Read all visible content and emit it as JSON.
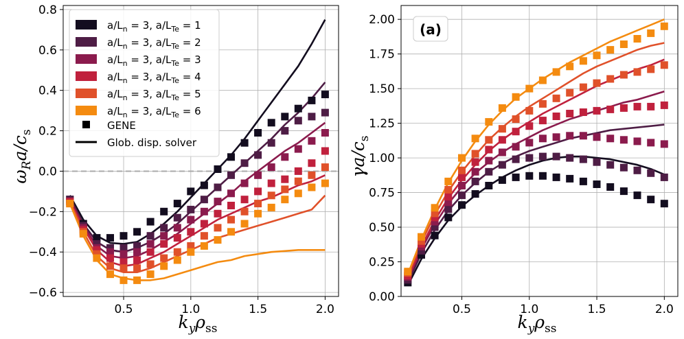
{
  "chart_data": [
    {
      "type": "scatter",
      "panel": "left",
      "xlabel": "k_y ρ_ss",
      "ylabel": "ω_R a / c_s",
      "xlim": [
        0.05,
        2.1
      ],
      "ylim": [
        -0.62,
        0.82
      ],
      "xticks": [
        0.5,
        1.0,
        1.5,
        2.0
      ],
      "xtick_labels": [
        "0.5",
        "1.0",
        "1.5",
        "2.0"
      ],
      "yticks": [
        -0.6,
        -0.4,
        -0.2,
        0.0,
        0.2,
        0.4,
        0.6,
        0.8
      ],
      "ytick_labels": [
        "−0.6",
        "−0.4",
        "−0.2",
        "0.0",
        "0.2",
        "0.4",
        "0.6",
        "0.8"
      ],
      "grid": true,
      "hline_zero": true,
      "legend_position": "top-left",
      "legend": {
        "entries": [
          {
            "text_main": "a/L",
            "sub1": "n",
            "mid": " = 3, a/L",
            "sub2": "Te",
            "tail": " = 1"
          },
          {
            "text_main": "a/L",
            "sub1": "n",
            "mid": " = 3, a/L",
            "sub2": "Te",
            "tail": " = 2"
          },
          {
            "text_main": "a/L",
            "sub1": "n",
            "mid": " = 3, a/L",
            "sub2": "Te",
            "tail": " = 3"
          },
          {
            "text_main": "a/L",
            "sub1": "n",
            "mid": " = 3, a/L",
            "sub2": "Te",
            "tail": " = 4"
          },
          {
            "text_main": "a/L",
            "sub1": "n",
            "mid": " = 3, a/L",
            "sub2": "Te",
            "tail": " = 5"
          },
          {
            "text_main": "a/L",
            "sub1": "n",
            "mid": " = 3, a/L",
            "sub2": "Te",
            "tail": " = 6"
          }
        ],
        "gene_label": "GENE",
        "solver_label": "Glob. disp. solver"
      },
      "x": [
        0.1,
        0.2,
        0.3,
        0.4,
        0.5,
        0.6,
        0.7,
        0.8,
        0.9,
        1.0,
        1.1,
        1.2,
        1.3,
        1.4,
        1.5,
        1.6,
        1.7,
        1.8,
        1.9,
        2.0
      ],
      "series": [
        {
          "name": "a/Ln = 3, a/LTe = 1",
          "color": "#130d1f",
          "gene": [
            -0.14,
            -0.26,
            -0.33,
            -0.33,
            -0.32,
            -0.3,
            -0.25,
            -0.2,
            -0.16,
            -0.1,
            -0.07,
            0.01,
            0.07,
            0.14,
            0.19,
            0.24,
            0.27,
            0.31,
            0.35,
            0.38
          ],
          "solver": [
            -0.12,
            -0.24,
            -0.32,
            -0.355,
            -0.36,
            -0.35,
            -0.31,
            -0.26,
            -0.2,
            -0.13,
            -0.06,
            0.01,
            0.08,
            0.16,
            0.25,
            0.34,
            0.43,
            0.52,
            0.63,
            0.75
          ]
        },
        {
          "name": "a/Ln = 3, a/LTe = 2",
          "color": "#4e1d45",
          "gene": [
            -0.14,
            -0.27,
            -0.36,
            -0.38,
            -0.38,
            -0.37,
            -0.32,
            -0.28,
            -0.23,
            -0.19,
            -0.14,
            -0.08,
            -0.02,
            0.04,
            0.08,
            0.14,
            0.2,
            0.25,
            0.27,
            0.29
          ],
          "solver": [
            -0.13,
            -0.26,
            -0.35,
            -0.39,
            -0.4,
            -0.38,
            -0.35,
            -0.31,
            -0.26,
            -0.2,
            -0.14,
            -0.08,
            -0.02,
            0.04,
            0.1,
            0.16,
            0.23,
            0.29,
            0.36,
            0.44
          ]
        },
        {
          "name": "a/Ln = 3, a/LTe = 3",
          "color": "#8b1b4d",
          "gene": [
            -0.15,
            -0.28,
            -0.38,
            -0.4,
            -0.41,
            -0.4,
            -0.36,
            -0.32,
            -0.28,
            -0.24,
            -0.2,
            -0.15,
            -0.11,
            -0.06,
            -0.02,
            0.02,
            0.07,
            0.11,
            0.15,
            0.19
          ],
          "solver": [
            -0.14,
            -0.27,
            -0.37,
            -0.42,
            -0.43,
            -0.42,
            -0.39,
            -0.35,
            -0.31,
            -0.26,
            -0.21,
            -0.16,
            -0.11,
            -0.05,
            0.0,
            0.05,
            0.1,
            0.14,
            0.19,
            0.24
          ]
        },
        {
          "name": "a/Ln = 3, a/LTe = 4",
          "color": "#c0213d",
          "gene": [
            -0.15,
            -0.29,
            -0.39,
            -0.43,
            -0.45,
            -0.44,
            -0.4,
            -0.36,
            -0.33,
            -0.3,
            -0.26,
            -0.21,
            -0.17,
            -0.14,
            -0.1,
            -0.06,
            -0.04,
            0.0,
            0.04,
            0.1
          ],
          "solver": [
            -0.15,
            -0.28,
            -0.39,
            -0.45,
            -0.47,
            -0.46,
            -0.43,
            -0.4,
            -0.36,
            -0.32,
            -0.28,
            -0.24,
            -0.21,
            -0.18,
            -0.15,
            -0.13,
            -0.1,
            -0.07,
            -0.05,
            -0.02
          ]
        },
        {
          "name": "a/Ln = 3, a/LTe = 5",
          "color": "#e0512a",
          "gene": [
            -0.16,
            -0.3,
            -0.41,
            -0.47,
            -0.48,
            -0.48,
            -0.46,
            -0.43,
            -0.4,
            -0.37,
            -0.32,
            -0.28,
            -0.24,
            -0.2,
            -0.16,
            -0.12,
            -0.09,
            -0.05,
            -0.02,
            0.02
          ],
          "solver": [
            -0.15,
            -0.3,
            -0.42,
            -0.48,
            -0.5,
            -0.5,
            -0.48,
            -0.45,
            -0.42,
            -0.39,
            -0.36,
            -0.33,
            -0.31,
            -0.29,
            -0.27,
            -0.25,
            -0.23,
            -0.21,
            -0.19,
            -0.12
          ]
        },
        {
          "name": "a/Ln = 3, a/LTe = 6",
          "color": "#f48b10",
          "gene": [
            -0.16,
            -0.31,
            -0.43,
            -0.51,
            -0.54,
            -0.54,
            -0.51,
            -0.47,
            -0.44,
            -0.4,
            -0.37,
            -0.34,
            -0.3,
            -0.26,
            -0.21,
            -0.18,
            -0.14,
            -0.11,
            -0.08,
            -0.06
          ],
          "solver": [
            -0.16,
            -0.32,
            -0.44,
            -0.51,
            -0.53,
            -0.54,
            -0.54,
            -0.53,
            -0.51,
            -0.49,
            -0.47,
            -0.45,
            -0.44,
            -0.42,
            -0.41,
            -0.4,
            -0.395,
            -0.39,
            -0.39,
            -0.39
          ]
        }
      ]
    },
    {
      "type": "scatter",
      "panel": "right",
      "panel_label": "(a)",
      "xlabel": "k_y ρ_ss",
      "ylabel": "γ a / c_s",
      "xlim": [
        0.05,
        2.1
      ],
      "ylim": [
        0.0,
        2.1
      ],
      "xticks": [
        0.5,
        1.0,
        1.5,
        2.0
      ],
      "xtick_labels": [
        "0.5",
        "1.0",
        "1.5",
        "2.0"
      ],
      "yticks": [
        0.0,
        0.25,
        0.5,
        0.75,
        1.0,
        1.25,
        1.5,
        1.75,
        2.0
      ],
      "ytick_labels": [
        "0.00",
        "0.25",
        "0.50",
        "0.75",
        "1.00",
        "1.25",
        "1.50",
        "1.75",
        "2.00"
      ],
      "grid": true,
      "x": [
        0.1,
        0.2,
        0.3,
        0.4,
        0.5,
        0.6,
        0.7,
        0.8,
        0.9,
        1.0,
        1.1,
        1.2,
        1.3,
        1.4,
        1.5,
        1.6,
        1.7,
        1.8,
        1.9,
        2.0
      ],
      "series": [
        {
          "name": "a/Ln = 3, a/LTe = 1",
          "color": "#130d1f",
          "gene": [
            0.1,
            0.3,
            0.44,
            0.57,
            0.66,
            0.74,
            0.8,
            0.84,
            0.86,
            0.87,
            0.87,
            0.86,
            0.85,
            0.83,
            0.81,
            0.79,
            0.76,
            0.73,
            0.7,
            0.67
          ],
          "solver": [
            0.08,
            0.27,
            0.42,
            0.55,
            0.65,
            0.73,
            0.8,
            0.86,
            0.91,
            0.95,
            0.98,
            1.0,
            1.01,
            1.01,
            1.0,
            0.99,
            0.97,
            0.95,
            0.92,
            0.88
          ]
        },
        {
          "name": "a/Ln = 3, a/LTe = 2",
          "color": "#4e1d45",
          "gene": [
            0.12,
            0.33,
            0.5,
            0.63,
            0.73,
            0.83,
            0.9,
            0.95,
            0.99,
            1.0,
            1.01,
            1.01,
            1.0,
            0.99,
            0.97,
            0.95,
            0.93,
            0.91,
            0.89,
            0.86
          ],
          "solver": [
            0.1,
            0.31,
            0.48,
            0.62,
            0.73,
            0.82,
            0.9,
            0.96,
            1.01,
            1.05,
            1.08,
            1.11,
            1.14,
            1.16,
            1.18,
            1.2,
            1.21,
            1.22,
            1.23,
            1.24
          ]
        },
        {
          "name": "a/Ln = 3, a/LTe = 3",
          "color": "#8b1b4d",
          "gene": [
            0.14,
            0.36,
            0.54,
            0.68,
            0.8,
            0.9,
            0.98,
            1.04,
            1.08,
            1.11,
            1.14,
            1.15,
            1.16,
            1.16,
            1.15,
            1.14,
            1.13,
            1.12,
            1.11,
            1.1
          ],
          "solver": [
            0.12,
            0.34,
            0.52,
            0.67,
            0.79,
            0.89,
            0.97,
            1.04,
            1.1,
            1.15,
            1.2,
            1.24,
            1.28,
            1.31,
            1.34,
            1.37,
            1.4,
            1.42,
            1.45,
            1.48
          ]
        },
        {
          "name": "a/Ln = 3, a/LTe = 4",
          "color": "#c0213d",
          "gene": [
            0.15,
            0.38,
            0.57,
            0.72,
            0.86,
            0.97,
            1.06,
            1.13,
            1.19,
            1.23,
            1.27,
            1.3,
            1.32,
            1.33,
            1.34,
            1.35,
            1.36,
            1.37,
            1.37,
            1.38
          ],
          "solver": [
            0.13,
            0.36,
            0.55,
            0.71,
            0.84,
            0.95,
            1.05,
            1.13,
            1.2,
            1.26,
            1.32,
            1.37,
            1.42,
            1.47,
            1.52,
            1.56,
            1.6,
            1.64,
            1.67,
            1.71
          ]
        },
        {
          "name": "a/Ln = 3, a/LTe = 5",
          "color": "#e0512a",
          "gene": [
            0.17,
            0.4,
            0.6,
            0.77,
            0.91,
            1.03,
            1.13,
            1.21,
            1.28,
            1.34,
            1.39,
            1.43,
            1.47,
            1.51,
            1.54,
            1.57,
            1.6,
            1.62,
            1.64,
            1.67
          ],
          "solver": [
            0.15,
            0.39,
            0.59,
            0.76,
            0.9,
            1.02,
            1.13,
            1.22,
            1.3,
            1.37,
            1.43,
            1.49,
            1.55,
            1.61,
            1.66,
            1.7,
            1.74,
            1.78,
            1.81,
            1.83
          ]
        },
        {
          "name": "a/Ln = 3, a/LTe = 6",
          "color": "#f48b10",
          "gene": [
            0.18,
            0.43,
            0.64,
            0.83,
            1.0,
            1.14,
            1.26,
            1.36,
            1.44,
            1.5,
            1.56,
            1.62,
            1.66,
            1.7,
            1.74,
            1.78,
            1.82,
            1.86,
            1.9,
            1.95
          ],
          "solver": [
            0.16,
            0.41,
            0.63,
            0.82,
            0.98,
            1.12,
            1.24,
            1.34,
            1.43,
            1.5,
            1.57,
            1.63,
            1.69,
            1.74,
            1.79,
            1.84,
            1.88,
            1.92,
            1.96,
            2.0
          ]
        }
      ]
    }
  ]
}
